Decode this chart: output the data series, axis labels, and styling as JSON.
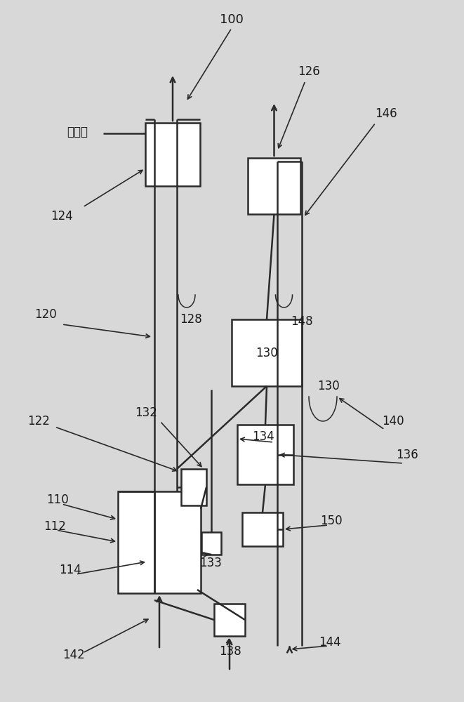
{
  "bg_color": "#d8d8d8",
  "line_color": "#2a2a2a",
  "text_color": "#1a1a1a",
  "fig_w": 6.61,
  "fig_h": 10.0,
  "dpi": 100
}
